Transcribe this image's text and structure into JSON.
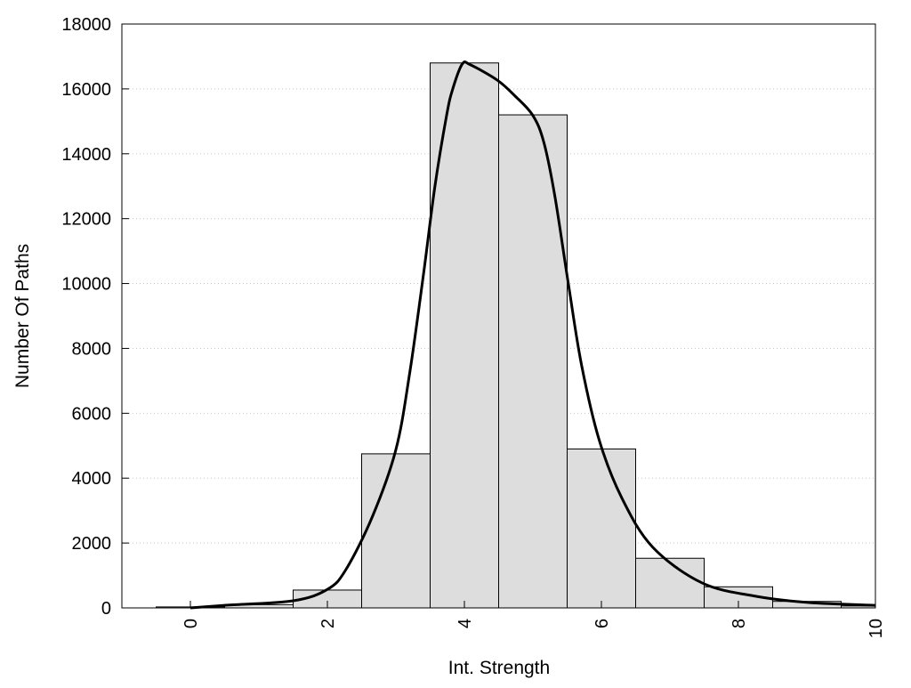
{
  "chart_data": {
    "type": "bar",
    "title": "",
    "xlabel": "Int. Strength",
    "ylabel": "Number Of Paths",
    "xlim": [
      -1,
      10
    ],
    "ylim": [
      0,
      18000
    ],
    "grid": "horizontal dotted",
    "x_ticks": [
      "0",
      "2",
      "4",
      "6",
      "8",
      "10"
    ],
    "x_tick_values": [
      0,
      2,
      4,
      6,
      8,
      10
    ],
    "y_ticks": [
      "0",
      "2000",
      "4000",
      "6000",
      "8000",
      "10000",
      "12000",
      "14000",
      "16000",
      "18000"
    ],
    "y_tick_values": [
      0,
      2000,
      4000,
      6000,
      8000,
      10000,
      12000,
      14000,
      16000,
      18000
    ],
    "bars": {
      "name": "histogram",
      "centers": [
        0,
        1,
        2,
        3,
        4,
        5,
        6,
        7,
        8,
        9,
        10
      ],
      "width": 1,
      "values": [
        30,
        100,
        550,
        4750,
        16800,
        15200,
        4900,
        1530,
        650,
        200,
        60
      ],
      "fill": "#dddddd"
    },
    "curve": {
      "name": "fit",
      "x": [
        0,
        0.5,
        1.5,
        2,
        2.27,
        2.66,
        3,
        3.2,
        3.4,
        3.57,
        3.74,
        3.83,
        3.97,
        4.09,
        4.48,
        4.74,
        5,
        5.16,
        5.32,
        5.52,
        5.71,
        5.97,
        6.3,
        6.75,
        7.47,
        8.25,
        9.03,
        10
      ],
      "y": [
        0,
        80,
        220,
        570,
        1180,
        2830,
        4880,
        7220,
        10240,
        13000,
        15180,
        16000,
        16770,
        16740,
        16270,
        15780,
        15180,
        14350,
        12700,
        9960,
        7490,
        5160,
        3380,
        1870,
        770,
        360,
        165,
        80
      ],
      "color": "#000000"
    }
  }
}
